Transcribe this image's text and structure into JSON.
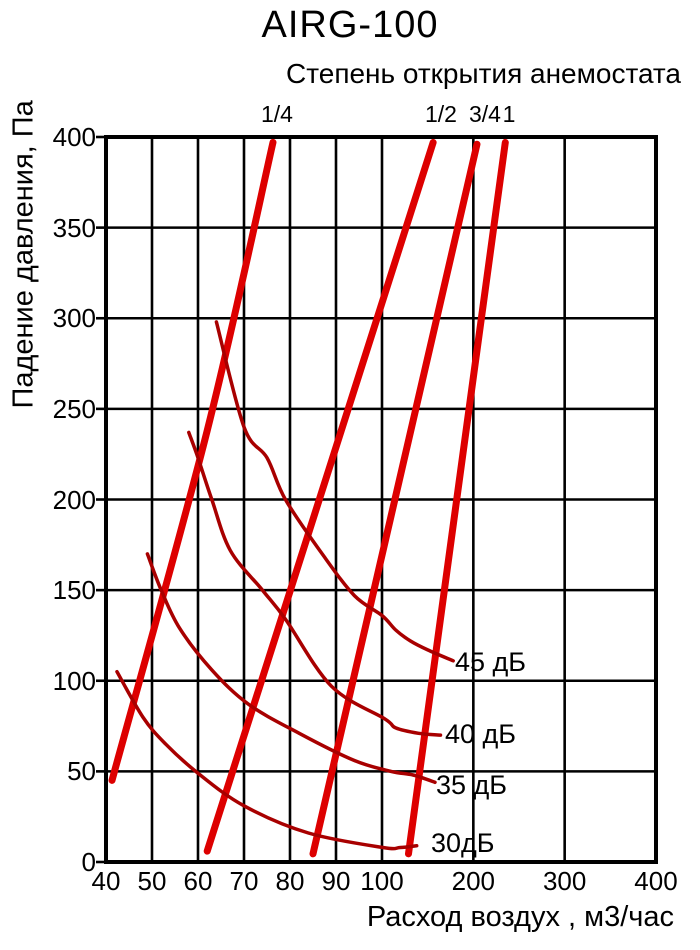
{
  "colors": {
    "opening_line_red": "#dd0000",
    "noise_curve_red": "#a80000",
    "grid_black": "#000000",
    "background": "#ffffff"
  },
  "chart_data": {
    "type": "line",
    "title": "AIRG-100",
    "subtitle": "Степень открытия анемостата",
    "xlabel": "Расход воздух , м3/час",
    "ylabel": "Падение давления, Па",
    "x_scale": "pseudo-log: equal pixel steps for 40..100 (by 10), then 100..400 (by 100)",
    "xlim": [
      40,
      400
    ],
    "ylim": [
      0,
      400
    ],
    "x_ticks": [
      40,
      50,
      60,
      70,
      80,
      90,
      100,
      200,
      300,
      400
    ],
    "y_ticks": [
      0,
      50,
      100,
      150,
      200,
      250,
      300,
      350,
      400
    ],
    "grid": true,
    "legend_position": "labels beside curve ends",
    "series": [
      {
        "name": "1/4",
        "group": "opening",
        "points": [
          [
            41.3,
            45
          ],
          [
            62,
            238
          ],
          [
            76.3,
            397
          ]
        ]
      },
      {
        "name": "1/2",
        "group": "opening",
        "points": [
          [
            62,
            6
          ],
          [
            156,
            397
          ]
        ]
      },
      {
        "name": "3/4",
        "group": "opening",
        "points": [
          [
            85,
            4.5
          ],
          [
            204,
            396
          ]
        ]
      },
      {
        "name": "1",
        "group": "opening",
        "points": [
          [
            129,
            4.5
          ],
          [
            235,
            397
          ]
        ]
      },
      {
        "name": "45 дБ",
        "group": "noise",
        "points": [
          [
            64,
            298
          ],
          [
            70,
            240
          ],
          [
            75,
            223
          ],
          [
            79,
            200
          ],
          [
            87,
            170
          ],
          [
            94,
            147
          ],
          [
            100,
            136
          ],
          [
            115,
            128
          ],
          [
            131,
            122
          ],
          [
            150,
            117
          ],
          [
            178,
            111
          ]
        ]
      },
      {
        "name": "40 дБ",
        "group": "noise",
        "points": [
          [
            58,
            237
          ],
          [
            60,
            223
          ],
          [
            63,
            200
          ],
          [
            67,
            172
          ],
          [
            74,
            150
          ],
          [
            79,
            134
          ],
          [
            89,
            97
          ],
          [
            103,
            79
          ],
          [
            115,
            74
          ],
          [
            140,
            71
          ],
          [
            164,
            70
          ]
        ]
      },
      {
        "name": "35 дБ",
        "group": "noise",
        "points": [
          [
            49,
            170
          ],
          [
            52,
            150
          ],
          [
            56,
            129
          ],
          [
            63,
            106
          ],
          [
            71,
            87
          ],
          [
            82,
            71
          ],
          [
            94,
            56
          ],
          [
            110,
            50
          ],
          [
            134,
            48
          ],
          [
            158,
            44
          ]
        ]
      },
      {
        "name": "30дБ",
        "group": "noise",
        "points": [
          [
            42.4,
            105
          ],
          [
            48,
            80
          ],
          [
            53,
            65
          ],
          [
            60,
            49
          ],
          [
            70,
            31
          ],
          [
            84,
            16
          ],
          [
            101,
            8
          ],
          [
            120,
            8
          ],
          [
            138,
            9
          ]
        ]
      }
    ]
  }
}
